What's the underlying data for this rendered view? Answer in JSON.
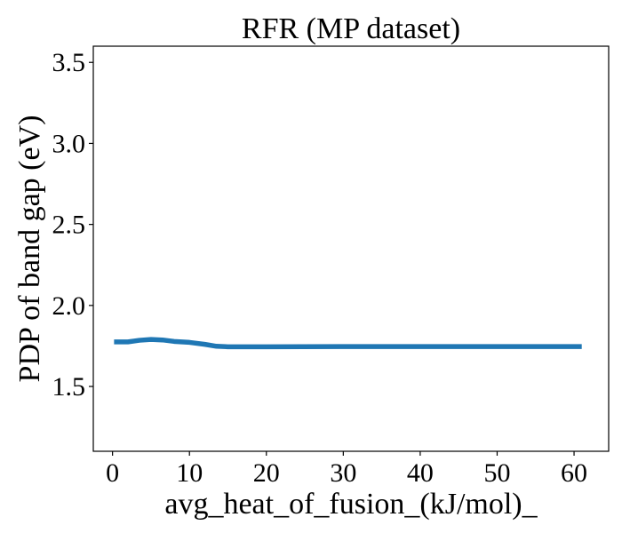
{
  "chart_data": {
    "type": "line",
    "title": "RFR (MP dataset)",
    "xlabel": "avg_heat_of_fusion_(kJ/mol)_",
    "ylabel": "PDP of band gap (eV)",
    "xlim": [
      -2.5,
      64.5
    ],
    "ylim": [
      1.1,
      3.6
    ],
    "xticks": [
      0,
      10,
      20,
      30,
      40,
      50,
      60
    ],
    "yticks": [
      1.5,
      2.0,
      2.5,
      3.0,
      3.5
    ],
    "xtick_labels": [
      "0",
      "10",
      "20",
      "30",
      "40",
      "50",
      "60"
    ],
    "ytick_labels": [
      "1.5",
      "2.0",
      "2.5",
      "3.0",
      "3.5"
    ],
    "grid": false,
    "legend": "none",
    "series": [
      {
        "color": "#1f77b4",
        "x": [
          0.2,
          2,
          3.5,
          5,
          6.5,
          8,
          10,
          12,
          13.5,
          15,
          20,
          30,
          40,
          50,
          61
        ],
        "y": [
          1.775,
          1.775,
          1.785,
          1.79,
          1.787,
          1.778,
          1.772,
          1.76,
          1.748,
          1.745,
          1.745,
          1.746,
          1.746,
          1.746,
          1.746
        ]
      }
    ]
  }
}
